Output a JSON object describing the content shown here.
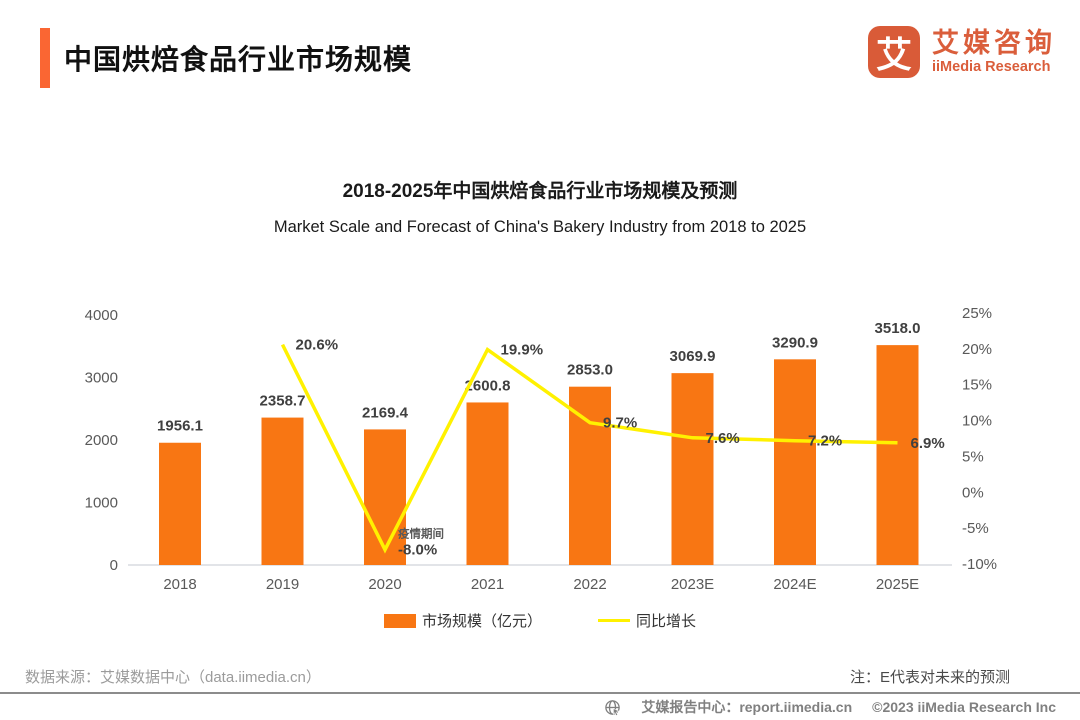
{
  "header": {
    "title": "中国烘焙食品行业市场规模",
    "logo_mark": "艾",
    "logo_cn": "艾媒咨询",
    "logo_en": "iiMedia Research"
  },
  "chart": {
    "title_cn": "2018-2025年中国烘焙食品行业市场规模及预测",
    "title_en": "Market Scale and Forecast of China's Bakery Industry from 2018 to 2025"
  },
  "chart_data": {
    "type": "bar+line",
    "categories": [
      "2018",
      "2019",
      "2020",
      "2021",
      "2022",
      "2023E",
      "2024E",
      "2025E"
    ],
    "series": [
      {
        "name": "市场规模（亿元）",
        "type": "bar",
        "axis": "left",
        "color": "#F87613",
        "values": [
          1956.1,
          2358.7,
          2169.4,
          2600.8,
          2853.0,
          3069.9,
          3290.9,
          3518.0
        ]
      },
      {
        "name": "同比增长",
        "type": "line",
        "axis": "right",
        "color": "#FFF100",
        "values": [
          null,
          20.6,
          -8.0,
          19.9,
          9.7,
          7.6,
          7.2,
          6.9
        ]
      }
    ],
    "left_axis": {
      "ticks": [
        0,
        1000,
        2000,
        3000,
        4000
      ],
      "range": [
        0,
        4000
      ]
    },
    "right_axis": {
      "ticks": [
        -10,
        -5,
        0,
        5,
        10,
        15,
        20,
        25
      ],
      "range": [
        -10,
        25
      ],
      "unit": "%"
    },
    "annotation": {
      "text": "疫情期间",
      "category": "2020"
    },
    "grid": "off",
    "legend_position": "bottom"
  },
  "footer": {
    "source": "数据来源：艾媒数据中心（data.iimedia.cn）",
    "note": "注：E代表对未来的预测",
    "report_center": "艾媒报告中心：report.iimedia.cn",
    "copyright": "©2023 iiMedia Research Inc"
  }
}
